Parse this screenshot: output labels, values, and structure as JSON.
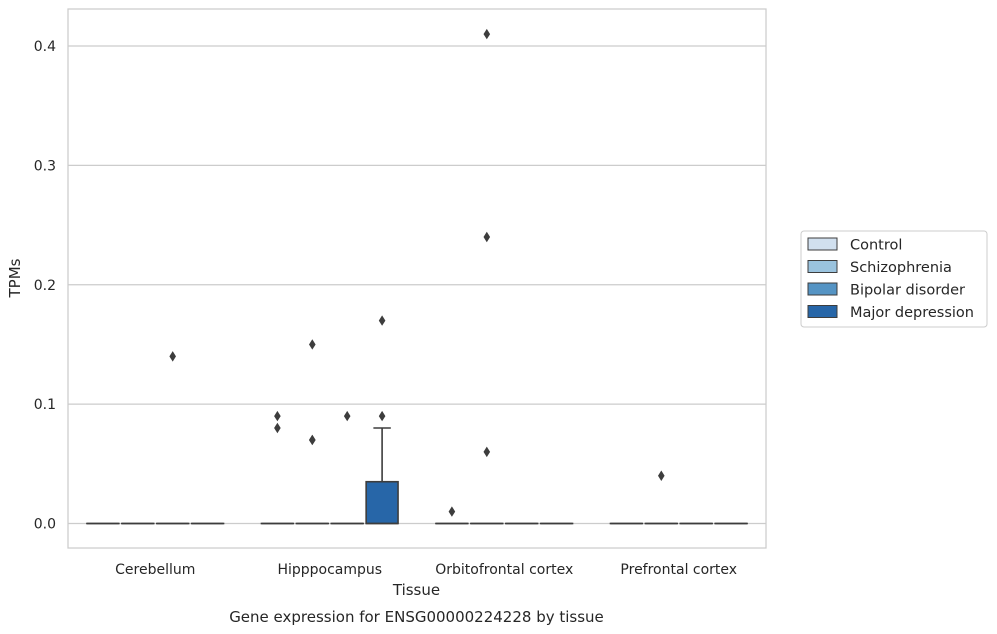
{
  "chart_data": {
    "type": "box",
    "title": "",
    "caption": "Gene expression for ENSG00000224228 by tissue",
    "xlabel": "Tissue",
    "ylabel": "TPMs",
    "ylim": [
      -0.02,
      0.43
    ],
    "yticks": [
      0.0,
      0.1,
      0.2,
      0.3,
      0.4
    ],
    "ytick_labels": [
      "0.0",
      "0.1",
      "0.2",
      "0.3",
      "0.4"
    ],
    "grid": "horizontal",
    "legend_position": "right",
    "categories": [
      "Cerebellum",
      "Hipppocampus",
      "Orbitofrontal cortex",
      "Prefrontal cortex"
    ],
    "series": [
      {
        "name": "Control",
        "color": "#d1e0ef"
      },
      {
        "name": "Schizophrenia",
        "color": "#9ac3de"
      },
      {
        "name": "Bipolar disorder",
        "color": "#5594c4"
      },
      {
        "name": "Major depression",
        "color": "#2766a8"
      }
    ],
    "boxes": [
      {
        "category": "Cerebellum",
        "series": "Control",
        "q1": 0,
        "median": 0,
        "q3": 0,
        "whisker_low": 0,
        "whisker_high": 0,
        "outliers": []
      },
      {
        "category": "Cerebellum",
        "series": "Schizophrenia",
        "q1": 0,
        "median": 0,
        "q3": 0,
        "whisker_low": 0,
        "whisker_high": 0,
        "outliers": []
      },
      {
        "category": "Cerebellum",
        "series": "Bipolar disorder",
        "q1": 0,
        "median": 0,
        "q3": 0,
        "whisker_low": 0,
        "whisker_high": 0,
        "outliers": [
          0.14
        ]
      },
      {
        "category": "Cerebellum",
        "series": "Major depression",
        "q1": 0,
        "median": 0,
        "q3": 0,
        "whisker_low": 0,
        "whisker_high": 0,
        "outliers": []
      },
      {
        "category": "Hipppocampus",
        "series": "Control",
        "q1": 0,
        "median": 0,
        "q3": 0,
        "whisker_low": 0,
        "whisker_high": 0,
        "outliers": [
          0.09,
          0.08
        ]
      },
      {
        "category": "Hipppocampus",
        "series": "Schizophrenia",
        "q1": 0,
        "median": 0,
        "q3": 0,
        "whisker_low": 0,
        "whisker_high": 0,
        "outliers": [
          0.15,
          0.07,
          0.07
        ]
      },
      {
        "category": "Hipppocampus",
        "series": "Bipolar disorder",
        "q1": 0,
        "median": 0,
        "q3": 0,
        "whisker_low": 0,
        "whisker_high": 0,
        "outliers": [
          0.09
        ]
      },
      {
        "category": "Hipppocampus",
        "series": "Major depression",
        "q1": 0,
        "median": 0,
        "q3": 0.035,
        "whisker_low": 0,
        "whisker_high": 0.08,
        "outliers": [
          0.17,
          0.09
        ]
      },
      {
        "category": "Orbitofrontal cortex",
        "series": "Control",
        "q1": 0,
        "median": 0,
        "q3": 0,
        "whisker_low": 0,
        "whisker_high": 0,
        "outliers": [
          0.01
        ]
      },
      {
        "category": "Orbitofrontal cortex",
        "series": "Schizophrenia",
        "q1": 0,
        "median": 0,
        "q3": 0,
        "whisker_low": 0,
        "whisker_high": 0,
        "outliers": [
          0.41,
          0.24,
          0.06
        ]
      },
      {
        "category": "Orbitofrontal cortex",
        "series": "Bipolar disorder",
        "q1": 0,
        "median": 0,
        "q3": 0,
        "whisker_low": 0,
        "whisker_high": 0,
        "outliers": []
      },
      {
        "category": "Orbitofrontal cortex",
        "series": "Major depression",
        "q1": 0,
        "median": 0,
        "q3": 0,
        "whisker_low": 0,
        "whisker_high": 0,
        "outliers": []
      },
      {
        "category": "Prefrontal cortex",
        "series": "Control",
        "q1": 0,
        "median": 0,
        "q3": 0,
        "whisker_low": 0,
        "whisker_high": 0,
        "outliers": []
      },
      {
        "category": "Prefrontal cortex",
        "series": "Schizophrenia",
        "q1": 0,
        "median": 0,
        "q3": 0,
        "whisker_low": 0,
        "whisker_high": 0,
        "outliers": [
          0.04
        ]
      },
      {
        "category": "Prefrontal cortex",
        "series": "Bipolar disorder",
        "q1": 0,
        "median": 0,
        "q3": 0,
        "whisker_low": 0,
        "whisker_high": 0,
        "outliers": []
      },
      {
        "category": "Prefrontal cortex",
        "series": "Major depression",
        "q1": 0,
        "median": 0,
        "q3": 0,
        "whisker_low": 0,
        "whisker_high": 0,
        "outliers": []
      }
    ]
  }
}
